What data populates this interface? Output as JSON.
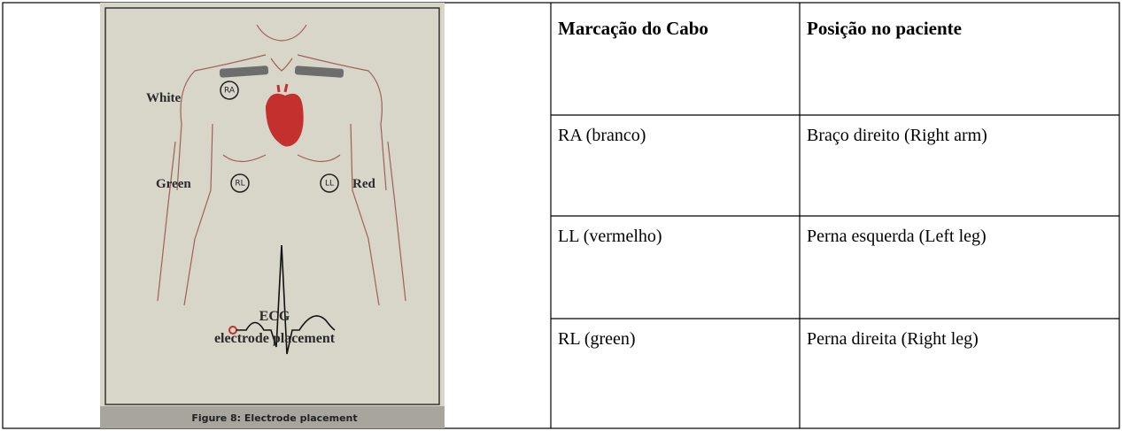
{
  "figure": {
    "labels": {
      "white": "White",
      "ra": "RA",
      "green": "Green",
      "rl": "RL",
      "ll": "LL",
      "red": "Red"
    },
    "title": "ECG",
    "subtitle": "electrode placement",
    "caption": "Figure 8: Electrode placement"
  },
  "table": {
    "header": [
      "Marcação do Cabo",
      "Posição no paciente"
    ],
    "rows": [
      [
        "RA (branco)",
        "Braço direito (Right arm)"
      ],
      [
        "LL (vermelho)",
        "Perna esquerda (Left leg)"
      ],
      [
        "RL (green)",
        "Perna direita (Right leg)"
      ]
    ]
  }
}
